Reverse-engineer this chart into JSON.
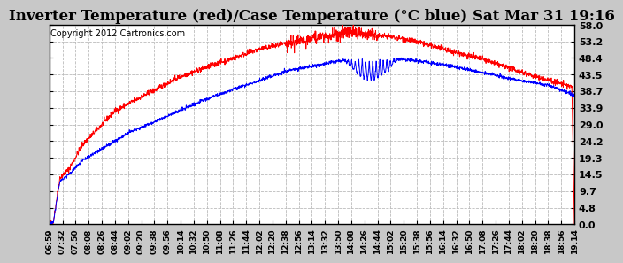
{
  "title": "Inverter Temperature (red)/Case Temperature (°C blue) Sat Mar 31 19:16",
  "copyright": "Copyright 2012 Cartronics.com",
  "yticks": [
    0.0,
    4.8,
    9.7,
    14.5,
    19.3,
    24.2,
    29.0,
    33.9,
    38.7,
    43.5,
    48.4,
    53.2,
    58.0
  ],
  "ymin": 0.0,
  "ymax": 58.0,
  "xtick_labels": [
    "06:59",
    "07:32",
    "07:50",
    "08:08",
    "08:26",
    "08:44",
    "09:02",
    "09:20",
    "09:38",
    "09:56",
    "10:14",
    "10:32",
    "10:50",
    "11:08",
    "11:26",
    "11:44",
    "12:02",
    "12:20",
    "12:38",
    "12:56",
    "13:14",
    "13:32",
    "13:50",
    "14:08",
    "14:26",
    "14:44",
    "15:02",
    "15:20",
    "15:38",
    "15:56",
    "16:14",
    "16:32",
    "16:50",
    "17:08",
    "17:26",
    "17:44",
    "18:02",
    "18:20",
    "18:38",
    "18:56",
    "19:14"
  ],
  "bg_color": "#c8c8c8",
  "plot_bg_color": "#ffffff",
  "grid_color": "#bbbbbb",
  "red_color": "#ff0000",
  "blue_color": "#0000ff",
  "title_fontsize": 12,
  "copyright_fontsize": 7
}
